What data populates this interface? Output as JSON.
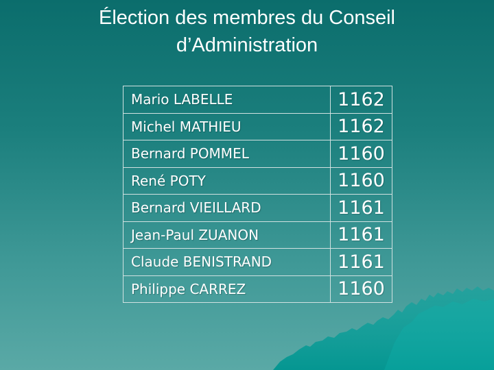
{
  "slide": {
    "title_line1": "Élection des membres du Conseil",
    "title_line2": "d’Administration"
  },
  "results": [
    {
      "name": "Mario LABELLE",
      "votes": "1162"
    },
    {
      "name": "Michel MATHIEU",
      "votes": "1162"
    },
    {
      "name": "Bernard POMMEL",
      "votes": "1160"
    },
    {
      "name": "René POTY",
      "votes": "1160"
    },
    {
      "name": "Bernard VIEILLARD",
      "votes": "1161"
    },
    {
      "name": "Jean-Paul ZUANON",
      "votes": "1161"
    },
    {
      "name": "Claude BENISTRAND",
      "votes": "1161"
    },
    {
      "name": "Philippe CARREZ",
      "votes": "1160"
    }
  ],
  "colors": {
    "background_top": "#0b6d6c",
    "background_bottom": "#5aa9a6",
    "mountain": "#009a95",
    "text": "#ffffff",
    "table_border": "#d2e2e1"
  },
  "decoration": {
    "background_art": "mountain-silhouette"
  }
}
